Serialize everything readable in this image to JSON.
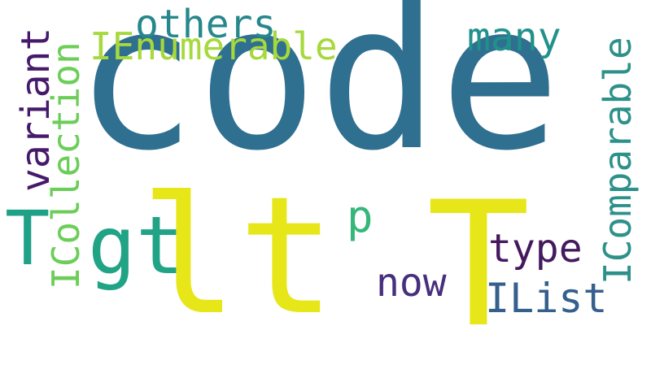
{
  "words": {
    "code": "code",
    "lt": "lt",
    "t_large": "T",
    "gt": "gt",
    "t_small": "T",
    "others": "others",
    "ienumerable": "IEnumerable",
    "many": "many",
    "p": "p",
    "now": "now",
    "type": "type",
    "ilist": "IList",
    "variant": "variant",
    "icollection": "ICollection",
    "icomparable": "IComparable"
  },
  "colors": {
    "code": "#2f6f8f",
    "lt": "#e6e619",
    "t_large": "#e6e619",
    "gt": "#21a386",
    "t_small": "#1fa187",
    "others": "#26888c",
    "ienumerable": "#a6d93c",
    "many": "#21918c",
    "p": "#35b779",
    "now": "#472f7d",
    "type": "#44195e",
    "ilist": "#355f8d",
    "variant": "#461a6a",
    "icollection": "#6cce59",
    "icomparable": "#2d918a"
  }
}
